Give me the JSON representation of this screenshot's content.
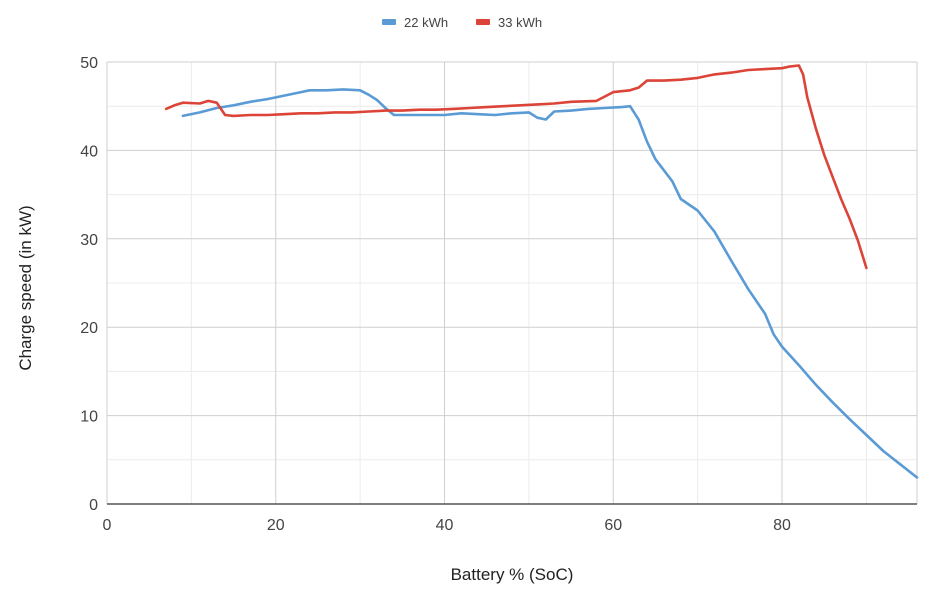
{
  "chart_data": {
    "type": "line",
    "xlabel": "Battery % (SoC)",
    "ylabel": "Charge speed (in kW)",
    "xlim": [
      0,
      96
    ],
    "ylim": [
      0,
      50
    ],
    "x_ticks": [
      0,
      20,
      40,
      60,
      80
    ],
    "y_ticks": [
      0,
      10,
      20,
      30,
      40,
      50
    ],
    "grid": true,
    "legend_position": "top-center",
    "series": [
      {
        "name": "22 kWh",
        "color": "#5b9bd5",
        "points": [
          [
            9,
            43.9
          ],
          [
            11,
            44.3
          ],
          [
            13,
            44.8
          ],
          [
            15,
            45.1
          ],
          [
            17,
            45.5
          ],
          [
            19,
            45.8
          ],
          [
            21,
            46.2
          ],
          [
            23,
            46.6
          ],
          [
            24,
            46.8
          ],
          [
            26,
            46.8
          ],
          [
            28,
            46.9
          ],
          [
            30,
            46.8
          ],
          [
            31,
            46.3
          ],
          [
            32,
            45.7
          ],
          [
            33,
            44.8
          ],
          [
            34,
            44.0
          ],
          [
            36,
            44.0
          ],
          [
            38,
            44.0
          ],
          [
            40,
            44.0
          ],
          [
            42,
            44.2
          ],
          [
            44,
            44.1
          ],
          [
            46,
            44.0
          ],
          [
            48,
            44.2
          ],
          [
            50,
            44.3
          ],
          [
            51,
            43.7
          ],
          [
            52,
            43.5
          ],
          [
            53,
            44.4
          ],
          [
            55,
            44.5
          ],
          [
            57,
            44.7
          ],
          [
            59,
            44.8
          ],
          [
            61,
            44.9
          ],
          [
            62,
            45.0
          ],
          [
            63,
            43.5
          ],
          [
            64,
            41.0
          ],
          [
            65,
            39.0
          ],
          [
            67,
            36.5
          ],
          [
            68,
            34.5
          ],
          [
            70,
            33.2
          ],
          [
            72,
            30.8
          ],
          [
            74,
            27.5
          ],
          [
            76,
            24.3
          ],
          [
            78,
            21.5
          ],
          [
            79,
            19.2
          ],
          [
            80,
            17.8
          ],
          [
            82,
            15.7
          ],
          [
            84,
            13.5
          ],
          [
            86,
            11.5
          ],
          [
            88,
            9.6
          ],
          [
            90,
            7.8
          ],
          [
            92,
            6.0
          ],
          [
            94,
            4.5
          ],
          [
            96,
            3.0
          ]
        ]
      },
      {
        "name": "33 kWh",
        "color": "#db4437",
        "points": [
          [
            7,
            44.7
          ],
          [
            8,
            45.1
          ],
          [
            9,
            45.4
          ],
          [
            11,
            45.3
          ],
          [
            12,
            45.6
          ],
          [
            13,
            45.4
          ],
          [
            14,
            44.0
          ],
          [
            15,
            43.9
          ],
          [
            17,
            44.0
          ],
          [
            19,
            44.0
          ],
          [
            21,
            44.1
          ],
          [
            23,
            44.2
          ],
          [
            25,
            44.2
          ],
          [
            27,
            44.3
          ],
          [
            29,
            44.3
          ],
          [
            31,
            44.4
          ],
          [
            33,
            44.5
          ],
          [
            35,
            44.5
          ],
          [
            37,
            44.6
          ],
          [
            39,
            44.6
          ],
          [
            41,
            44.7
          ],
          [
            43,
            44.8
          ],
          [
            45,
            44.9
          ],
          [
            47,
            45.0
          ],
          [
            49,
            45.1
          ],
          [
            51,
            45.2
          ],
          [
            53,
            45.3
          ],
          [
            55,
            45.5
          ],
          [
            58,
            45.6
          ],
          [
            60,
            46.6
          ],
          [
            62,
            46.8
          ],
          [
            63,
            47.1
          ],
          [
            64,
            47.9
          ],
          [
            66,
            47.9
          ],
          [
            68,
            48.0
          ],
          [
            70,
            48.2
          ],
          [
            72,
            48.6
          ],
          [
            74,
            48.8
          ],
          [
            76,
            49.1
          ],
          [
            78,
            49.2
          ],
          [
            80,
            49.3
          ],
          [
            81,
            49.5
          ],
          [
            82,
            49.6
          ],
          [
            82.5,
            48.6
          ],
          [
            83,
            46.0
          ],
          [
            84,
            42.5
          ],
          [
            85,
            39.5
          ],
          [
            86,
            37.0
          ],
          [
            87,
            34.5
          ],
          [
            88,
            32.3
          ],
          [
            89,
            29.8
          ],
          [
            90,
            26.7
          ]
        ]
      }
    ]
  }
}
